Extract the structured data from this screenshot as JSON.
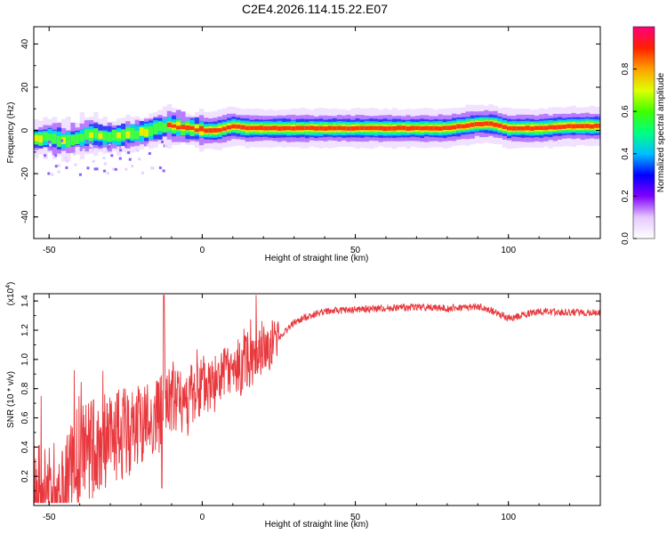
{
  "title": "C2E4.2026.114.15.22.E07",
  "chart_data": [
    {
      "type": "heatmap",
      "xlabel": "Height of straight line (km)",
      "ylabel": "Frequency (Hz)",
      "xlim": [
        -55,
        130
      ],
      "ylim": [
        -50,
        48
      ],
      "xticks": [
        "-50",
        "0",
        "50",
        "100"
      ],
      "yticks": [
        "40",
        "20",
        "0",
        "-20",
        "-40"
      ],
      "colorbar": {
        "label": "Normalized spectral amplitude",
        "range": [
          0,
          1
        ],
        "ticks": [
          "0.0",
          "0.2",
          "0.4",
          "0.6",
          "0.8"
        ]
      },
      "ridge": {
        "x": [
          -55,
          -50,
          -45,
          -40,
          -35,
          -30,
          -25,
          -20,
          -15,
          -12,
          -8,
          -5,
          0,
          5,
          10,
          15,
          20,
          30,
          40,
          50,
          60,
          70,
          80,
          90,
          95,
          100,
          110,
          120,
          130
        ],
        "freq": [
          -4,
          -3,
          -5,
          -3,
          -2,
          -3,
          -2,
          -1,
          1,
          2,
          2,
          1,
          0,
          0,
          2,
          1,
          1,
          1,
          1,
          1,
          1,
          1,
          1,
          3,
          3,
          1,
          1,
          2,
          2
        ]
      }
    },
    {
      "type": "line",
      "xlabel": "Height of straight line (km)",
      "ylabel": "SNR (10 * v/v)",
      "yscale_label": "(x10",
      "yscale_exp": "4",
      "yscale_close": ")",
      "xlim": [
        -55,
        130
      ],
      "ylim": [
        0,
        1.45
      ],
      "xticks": [
        "-50",
        "0",
        "50",
        "100"
      ],
      "yticks": [
        "0.2",
        "0.4",
        "0.6",
        "0.8",
        "1.0",
        "1.2",
        "1.4"
      ],
      "series": [
        {
          "name": "SNR",
          "color": "#e8383d",
          "x": [
            -55,
            -50,
            -45,
            -40,
            -35,
            -30,
            -25,
            -20,
            -15,
            -12,
            -10,
            -5,
            0,
            5,
            10,
            15,
            20,
            25,
            30,
            35,
            40,
            50,
            60,
            70,
            80,
            90,
            95,
            100,
            110,
            120,
            130
          ],
          "y": [
            0.1,
            0.05,
            0.15,
            0.35,
            0.4,
            0.45,
            0.5,
            0.55,
            0.6,
            0.7,
            0.72,
            0.72,
            0.8,
            0.85,
            0.9,
            1.0,
            1.05,
            1.15,
            1.25,
            1.3,
            1.33,
            1.34,
            1.35,
            1.36,
            1.35,
            1.36,
            1.33,
            1.28,
            1.33,
            1.32,
            1.32
          ]
        }
      ]
    }
  ]
}
